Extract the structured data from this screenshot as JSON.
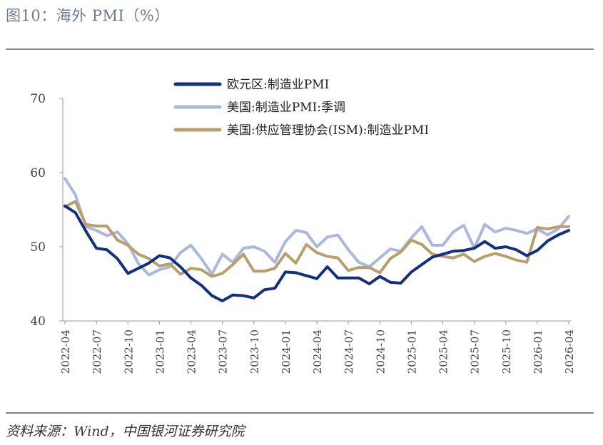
{
  "title": "图10：海外 PMI（%）",
  "source": "资料来源：Wind，中国银河证券研究院",
  "chart_data": {
    "type": "line",
    "title": "海外 PMI（%）",
    "xlabel": "",
    "ylabel": "",
    "ylim": [
      40,
      70
    ],
    "yticks": [
      40,
      50,
      60,
      70
    ],
    "x": [
      "2022-04",
      "2022-05",
      "2022-06",
      "2022-07",
      "2022-08",
      "2022-09",
      "2022-10",
      "2022-11",
      "2022-12",
      "2023-01",
      "2023-02",
      "2023-03",
      "2023-04",
      "2023-05",
      "2023-06",
      "2023-07",
      "2023-08",
      "2023-09",
      "2023-10",
      "2023-11",
      "2023-12",
      "2024-01",
      "2024-02",
      "2024-03",
      "2024-04",
      "2024-05",
      "2024-06",
      "2024-07",
      "2024-08",
      "2024-09",
      "2024-10",
      "2024-11",
      "2024-12",
      "2025-01",
      "2025-02",
      "2025-03",
      "2025-04",
      "2025-05",
      "2025-06",
      "2025-07",
      "2025-08",
      "2025-09",
      "2025-10",
      "2025-11",
      "2025-12",
      "2026-01",
      "2026-02",
      "2026-03",
      "2026-04"
    ],
    "xtick_labels": [
      "2022-04",
      "2022-07",
      "2022-10",
      "2023-01",
      "2023-04",
      "2023-07",
      "2023-10",
      "2024-01",
      "2024-04",
      "2024-07",
      "2024-10",
      "2025-01",
      "2025-04",
      "2025-07",
      "2025-10",
      "2026-01",
      "2026-04"
    ],
    "legend_position": "top",
    "series": [
      {
        "name": "欧元区:制造业PMI",
        "color": "#14307a",
        "values": [
          55.5,
          54.6,
          52.1,
          49.8,
          49.6,
          48.4,
          46.4,
          47.1,
          47.8,
          48.8,
          48.5,
          47.3,
          45.8,
          44.8,
          43.4,
          42.7,
          43.5,
          43.4,
          43.1,
          44.2,
          44.4,
          46.6,
          46.5,
          46.1,
          45.7,
          47.3,
          45.8,
          45.8,
          45.8,
          45.0,
          46.0,
          45.2,
          45.1,
          46.6,
          47.6,
          48.6,
          49.0,
          49.4,
          49.5,
          49.8,
          50.7,
          49.8,
          50.0,
          49.6,
          48.8,
          49.5,
          50.8,
          51.6,
          52.2
        ]
      },
      {
        "name": "美国:制造业PMI:季调",
        "color": "#a9b8dc",
        "values": [
          59.2,
          57.0,
          52.7,
          52.2,
          51.5,
          52.0,
          50.4,
          47.7,
          46.2,
          46.9,
          47.3,
          49.2,
          50.2,
          48.4,
          46.3,
          49.0,
          47.9,
          49.8,
          50.0,
          49.4,
          47.9,
          50.7,
          52.2,
          51.9,
          50.0,
          51.3,
          51.6,
          49.6,
          47.9,
          47.3,
          48.5,
          49.7,
          49.4,
          51.2,
          52.7,
          50.2,
          50.2,
          52.0,
          52.9,
          49.8,
          53.0,
          52.0,
          52.5,
          52.2,
          51.8,
          52.4,
          51.6,
          52.4,
          54.1
        ]
      },
      {
        "name": "美国:供应管理协会(ISM):制造业PMI",
        "color": "#b99e6e",
        "values": [
          55.4,
          56.1,
          53.0,
          52.8,
          52.8,
          50.9,
          50.2,
          49.0,
          48.4,
          47.4,
          47.7,
          46.3,
          47.1,
          46.9,
          46.0,
          46.4,
          47.6,
          49.0,
          46.7,
          46.7,
          47.1,
          49.1,
          47.8,
          50.3,
          49.2,
          48.7,
          48.5,
          46.8,
          47.2,
          47.2,
          46.5,
          48.4,
          49.3,
          50.9,
          50.3,
          49.0,
          48.7,
          48.5,
          49.0,
          48.0,
          48.7,
          49.1,
          48.7,
          48.2,
          47.9,
          52.6,
          52.4,
          52.7,
          52.7
        ]
      }
    ]
  }
}
